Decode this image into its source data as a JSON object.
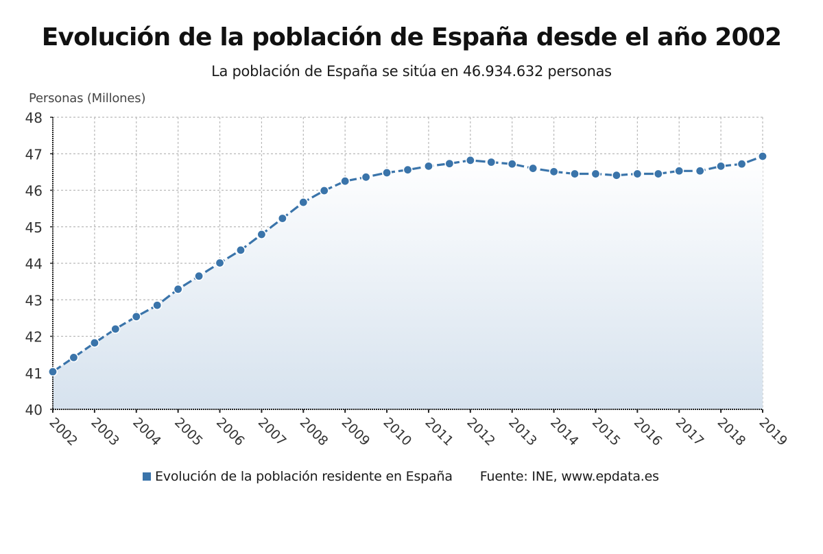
{
  "chart_data": {
    "type": "area",
    "title": "Evolución de la población de España desde el año 2002",
    "subtitle": "La población de España se sitúa en 46.934.632 personas",
    "ylabel": "Personas (Millones)",
    "xlabel": "",
    "ylim": [
      40,
      48
    ],
    "yticks": [
      40,
      41,
      42,
      43,
      44,
      45,
      46,
      47,
      48
    ],
    "xlim": [
      2002,
      2019
    ],
    "xticks": [
      "2002",
      "2003",
      "2004",
      "2005",
      "2006",
      "2007",
      "2008",
      "2009",
      "2010",
      "2011",
      "2012",
      "2013",
      "2014",
      "2015",
      "2016",
      "2017",
      "2018",
      "2019"
    ],
    "grid": true,
    "legend_position": "bottom",
    "series": [
      {
        "name": "Evolución de la población residente en España",
        "color": "#3a74aa",
        "fill_color": "#d6e2ee",
        "x": [
          2002,
          2002.5,
          2003,
          2003.5,
          2004,
          2004.5,
          2005,
          2005.5,
          2006,
          2006.5,
          2007,
          2007.5,
          2008,
          2008.5,
          2009,
          2009.5,
          2010,
          2010.5,
          2011,
          2011.5,
          2012,
          2012.5,
          2013,
          2013.5,
          2014,
          2014.5,
          2015,
          2015.5,
          2016,
          2016.5,
          2017,
          2017.5,
          2018,
          2018.5,
          2019
        ],
        "values": [
          41.03,
          41.42,
          41.82,
          42.2,
          42.54,
          42.85,
          43.29,
          43.65,
          44.01,
          44.36,
          44.79,
          45.23,
          45.67,
          45.99,
          46.25,
          46.36,
          46.48,
          46.56,
          46.66,
          46.73,
          46.82,
          46.77,
          46.72,
          46.6,
          46.51,
          46.45,
          46.45,
          46.41,
          46.45,
          46.45,
          46.53,
          46.53,
          46.66,
          46.72,
          46.93
        ]
      }
    ],
    "source": "Fuente: INE, www.epdata.es"
  }
}
